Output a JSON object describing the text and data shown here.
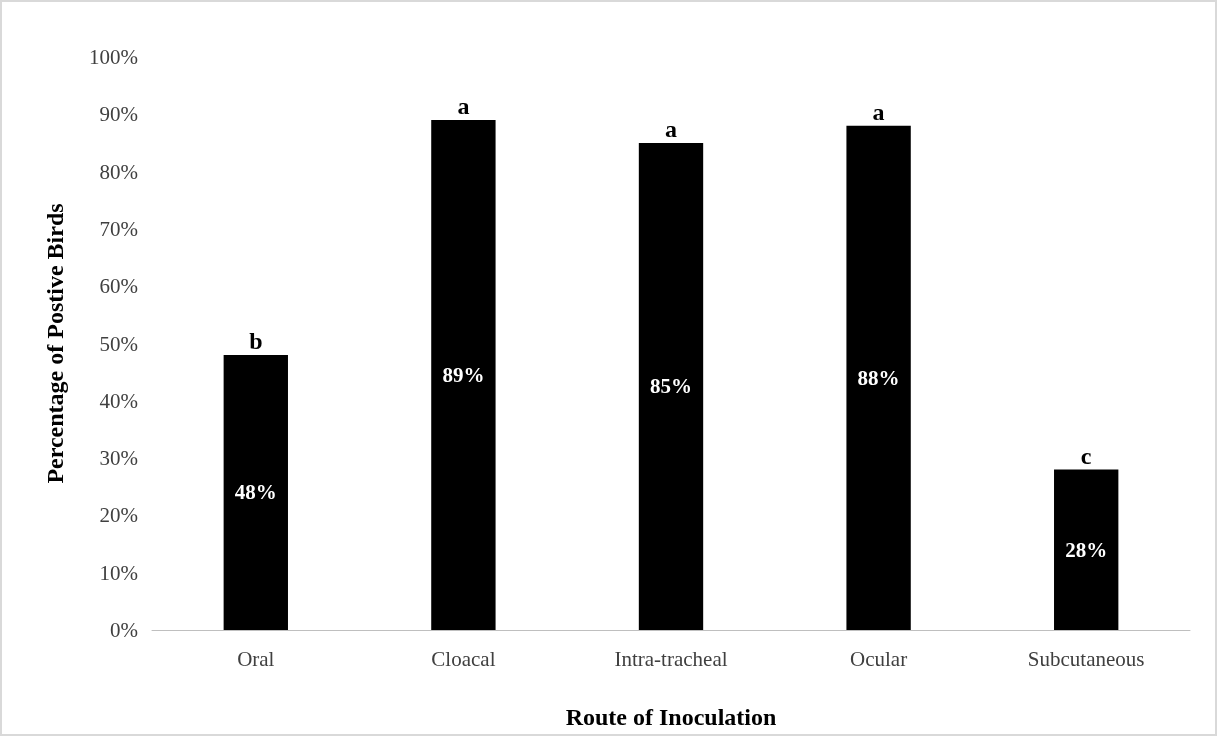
{
  "chart_data": {
    "type": "bar",
    "xlabel": "Route of Inoculation",
    "ylabel": "Percentage of Postive Birds",
    "categories": [
      "Oral",
      "Cloacal",
      "Intra-tracheal",
      "Ocular",
      "Subcutaneous"
    ],
    "values": [
      48,
      89,
      85,
      88,
      28
    ],
    "value_labels": [
      "48%",
      "89%",
      "85%",
      "88%",
      "28%"
    ],
    "color": "#000000",
    "ylim": [
      0,
      100
    ],
    "yticks": [
      {
        "value": 0,
        "label": "0%"
      },
      {
        "value": 10,
        "label": "10%"
      },
      {
        "value": 20,
        "label": "20%"
      },
      {
        "value": 30,
        "label": "30%"
      },
      {
        "value": 40,
        "label": "40%"
      },
      {
        "value": 50,
        "label": "50%"
      },
      {
        "value": 60,
        "label": "60%"
      },
      {
        "value": 70,
        "label": "70%"
      },
      {
        "value": 80,
        "label": "80%"
      },
      {
        "value": 90,
        "label": "90%"
      },
      {
        "value": 100,
        "label": "100%"
      }
    ],
    "grid": false,
    "annotations": [
      {
        "text": "b",
        "x": "Oral",
        "y": 48
      },
      {
        "text": "a",
        "x": "Cloacal",
        "y": 89
      },
      {
        "text": "a",
        "x": "Intra-tracheal",
        "y": 85
      },
      {
        "text": "a",
        "x": "Ocular",
        "y": 88
      },
      {
        "text": "c",
        "x": "Subcutaneous",
        "y": 28
      }
    ]
  }
}
